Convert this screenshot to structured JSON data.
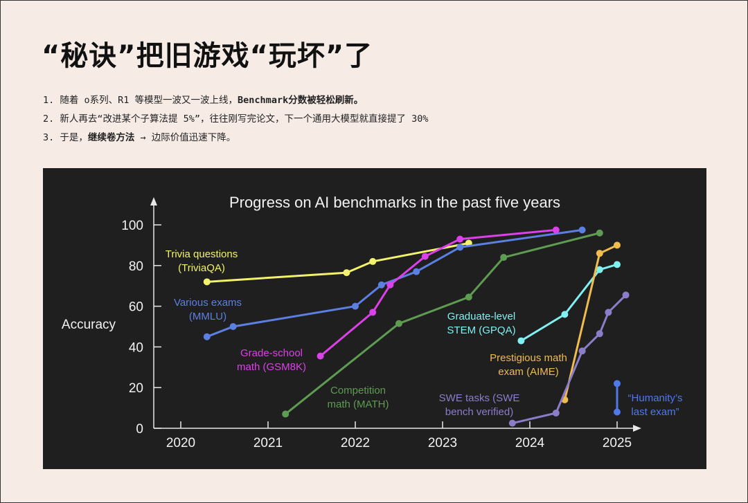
{
  "title": "“秘诀”把旧游戏“玩坏”了",
  "bullets": [
    {
      "num": "1.",
      "text": "随着 o系列、R1 等模型一波又一波上线，",
      "bold": "Benchmark分数被轻松刷新。",
      "tail": ""
    },
    {
      "num": "2.",
      "text": "新人再去“改进某个子算法提 5%”，往往刚写完论文，下一个通用大模型就直接提了 30%",
      "bold": "",
      "tail": ""
    },
    {
      "num": "3.",
      "text": "于是，",
      "bold": "继续卷方法",
      "tail": " → 边际价值迅速下降。"
    }
  ],
  "chart_data": {
    "type": "line",
    "title": "Progress on AI benchmarks in the past five years",
    "xlabel": "",
    "ylabel": "Accuracy",
    "xlim": [
      2019.7,
      2025.3
    ],
    "ylim": [
      0,
      105
    ],
    "xticks": [
      2020,
      2021,
      2022,
      2023,
      2024,
      2025
    ],
    "xtick_labels": [
      "2020",
      "2021",
      "2022",
      "2023",
      "2024",
      "2025"
    ],
    "yticks": [
      0,
      20,
      40,
      60,
      80,
      100
    ],
    "ytick_labels": [
      "0",
      "20",
      "40",
      "60",
      "80",
      "100"
    ],
    "grid": false,
    "background": "#1f1f1f",
    "series": [
      {
        "name": "Trivia questions (TriviaQA)",
        "label_lines": [
          "Trivia questions",
          "(TriviaQA)"
        ],
        "color": "#f2f26c",
        "x": [
          2020.3,
          2021.9,
          2022.2,
          2023.3
        ],
        "y": [
          72,
          76.5,
          82,
          91
        ]
      },
      {
        "name": "Various exams (MMLU)",
        "label_lines": [
          "Various exams",
          "(MMLU)"
        ],
        "color": "#5b80e2",
        "x": [
          2020.3,
          2020.6,
          2022.0,
          2022.3,
          2022.7,
          2023.2,
          2024.6
        ],
        "y": [
          45,
          50,
          60,
          70.5,
          77,
          89,
          97.5
        ]
      },
      {
        "name": "Grade-school math (GSM8K)",
        "label_lines": [
          "Grade-school",
          "math (GSM8K)"
        ],
        "color": "#dc40e8",
        "x": [
          2021.6,
          2022.2,
          2022.4,
          2022.8,
          2023.2,
          2024.3
        ],
        "y": [
          35.5,
          57,
          70.5,
          84.5,
          93,
          97.5
        ]
      },
      {
        "name": "Competition math (MATH)",
        "label_lines": [
          "Competition",
          "math (MATH)"
        ],
        "color": "#5e9c52",
        "x": [
          2021.2,
          2022.5,
          2023.3,
          2023.7,
          2024.8
        ],
        "y": [
          7,
          51.5,
          64.5,
          84,
          96
        ]
      },
      {
        "name": "Graduate-level STEM (GPQA)",
        "label_lines": [
          "Graduate-level",
          "STEM (GPQA)"
        ],
        "color": "#80f0f0",
        "x": [
          2023.9,
          2024.4,
          2024.8,
          2025.0
        ],
        "y": [
          43,
          56,
          78,
          80.5
        ]
      },
      {
        "name": "Prestigious math exam (AIME)",
        "label_lines": [
          "Prestigious math",
          "exam (AIME)"
        ],
        "color": "#f0bc4e",
        "x": [
          2024.4,
          2024.8,
          2025.0
        ],
        "y": [
          14,
          86,
          90
        ]
      },
      {
        "name": "SWE tasks (SWE bench verified)",
        "label_lines": [
          "SWE tasks (SWE",
          "bench verified)"
        ],
        "color": "#8c7dca",
        "x": [
          2023.8,
          2024.3,
          2024.6,
          2024.8,
          2024.9,
          2025.1
        ],
        "y": [
          2.5,
          7.5,
          38,
          46.5,
          57,
          65.5
        ]
      },
      {
        "name": "“Humanity’s last exam”",
        "label_lines": [
          "“Humanity’s",
          "last exam”"
        ],
        "color": "#5079ea",
        "x": [
          2025.0,
          2025.0
        ],
        "y": [
          22,
          8
        ]
      }
    ]
  }
}
